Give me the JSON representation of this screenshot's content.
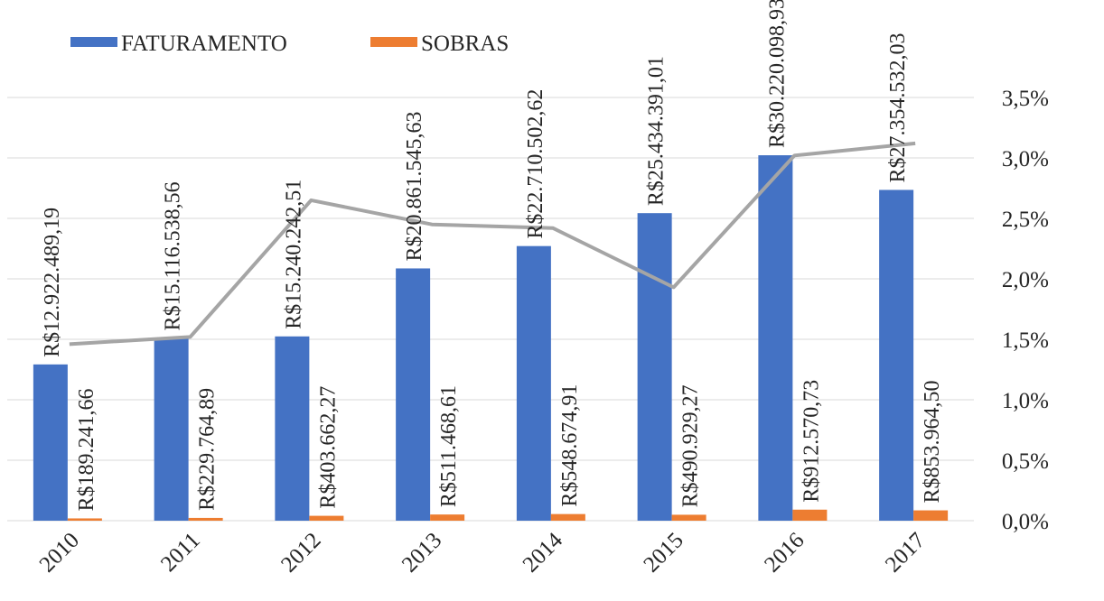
{
  "chart_data": {
    "type": "bar",
    "categories": [
      "2010",
      "2011",
      "2012",
      "2013",
      "2014",
      "2015",
      "2016",
      "2017"
    ],
    "series": [
      {
        "name": "FATURAMENTO",
        "color": "#4472C4",
        "values": [
          12922489.19,
          15116538.56,
          15240242.51,
          20861545.63,
          22710502.62,
          25434391.01,
          30220098.93,
          27354532.03
        ],
        "labels": [
          "R$12.922.489,19",
          "R$15.116.538,56",
          "R$15.240.242,51",
          "R$20.861.545,63",
          "R$22.710.502,62",
          "R$25.434.391,01",
          "R$30.220.098,93",
          "R$27.354.532,03"
        ]
      },
      {
        "name": "SOBRAS",
        "color": "#ED7D31",
        "values": [
          189241.66,
          229764.89,
          403662.27,
          511468.61,
          548674.91,
          490929.27,
          912570.73,
          853964.5
        ],
        "labels": [
          "R$189.241,66",
          "R$229.764,89",
          "R$403.662,27",
          "R$511.468,61",
          "R$548.674,91",
          "R$490.929,27",
          "R$912.570,73",
          "R$853.964,50"
        ]
      },
      {
        "type": "line",
        "color": "#A5A5A5",
        "values": [
          1.46,
          1.52,
          2.65,
          2.45,
          2.42,
          1.93,
          3.02,
          3.12
        ]
      }
    ],
    "left_axis": {
      "visible": false,
      "ylim": [
        0,
        35000000
      ]
    },
    "right_axis": {
      "ylim": [
        0,
        3.5
      ],
      "ticks": [
        0,
        0.5,
        1.0,
        1.5,
        2.0,
        2.5,
        3.0,
        3.5
      ],
      "tick_labels": [
        "0,0%",
        "0,5%",
        "1,0%",
        "1,5%",
        "2,0%",
        "2,5%",
        "3,0%",
        "3,5%"
      ]
    },
    "grid": true,
    "legend": {
      "position": "top-left"
    }
  }
}
